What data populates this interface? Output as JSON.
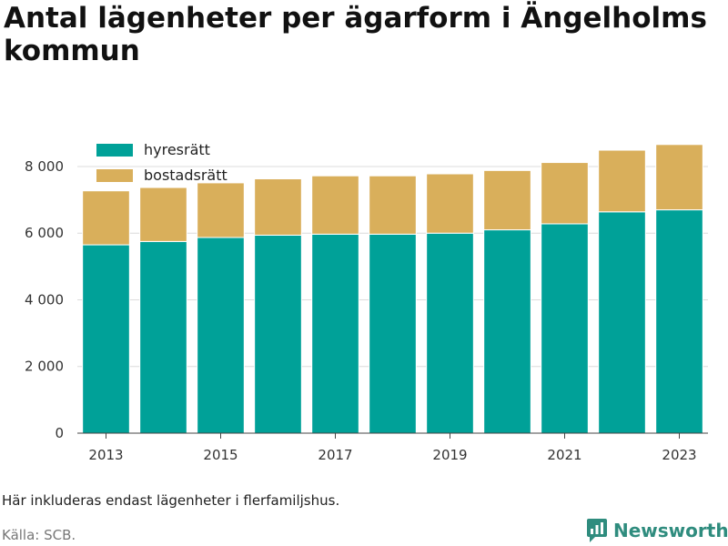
{
  "title": "Antal lägenheter per ägarform i Ängelholms kommun",
  "note": "Här inkluderas endast lägenheter i flerfamiljshus.",
  "source": "Källa: SCB.",
  "brand": {
    "name": "Newsworthy",
    "color": "#2f8c7e"
  },
  "chart_data": {
    "type": "bar",
    "stacked": true,
    "categories": [
      2013,
      2014,
      2015,
      2016,
      2017,
      2018,
      2019,
      2020,
      2021,
      2022,
      2023
    ],
    "x_tick_labels": [
      "2013",
      "2015",
      "2017",
      "2019",
      "2021",
      "2023"
    ],
    "y_ticks": [
      0,
      2000,
      4000,
      6000,
      8000
    ],
    "y_tick_labels": [
      "0",
      "2 000",
      "4 000",
      "6 000",
      "8 000"
    ],
    "ylim": [
      0,
      8900
    ],
    "grid": true,
    "legend_position": "top-left",
    "series": [
      {
        "name": "hyresrätt",
        "color": "#00a198",
        "values": [
          5650,
          5750,
          5870,
          5940,
          5970,
          5970,
          6000,
          6100,
          6280,
          6640,
          6700
        ]
      },
      {
        "name": "bostadsrätt",
        "color": "#d9af5b",
        "values": [
          1620,
          1620,
          1640,
          1690,
          1750,
          1750,
          1780,
          1780,
          1840,
          1850,
          1960
        ]
      }
    ]
  }
}
